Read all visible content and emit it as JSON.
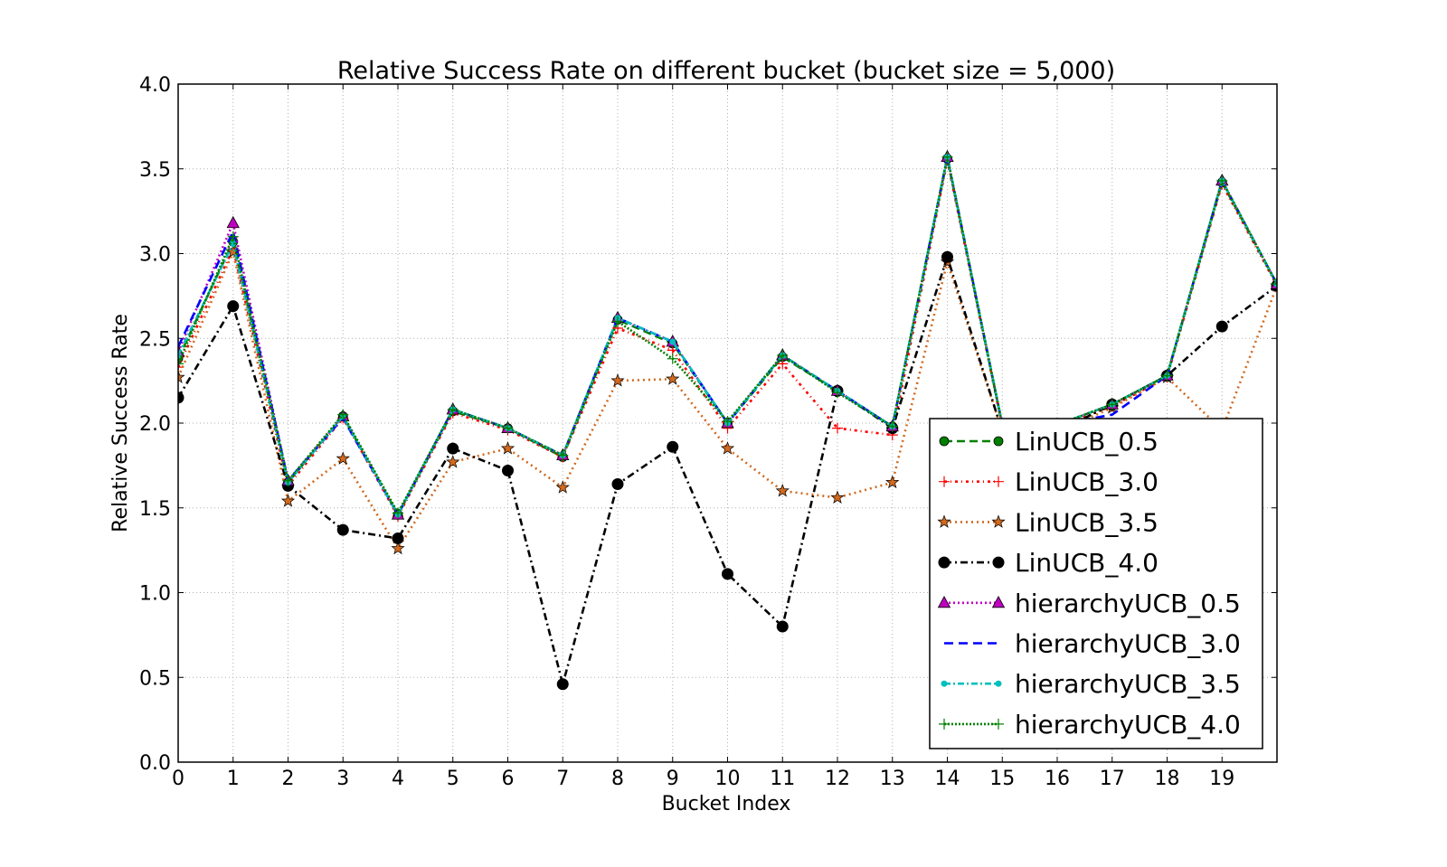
{
  "chart_data": {
    "type": "line",
    "title": "Relative Success Rate on different bucket (bucket size = 5,000)",
    "xlabel": "Bucket Index",
    "ylabel": "Relative Success Rate",
    "xlim": [
      0,
      20
    ],
    "ylim": [
      0.0,
      4.0
    ],
    "x_ticks": [
      "0",
      "1",
      "2",
      "3",
      "4",
      "5",
      "6",
      "7",
      "8",
      "9",
      "10",
      "11",
      "12",
      "13",
      "14",
      "15",
      "16",
      "17",
      "18",
      "19"
    ],
    "y_ticks": [
      "0.0",
      "0.5",
      "1.0",
      "1.5",
      "2.0",
      "2.5",
      "3.0",
      "3.5",
      "4.0"
    ],
    "grid": true,
    "legend_position": "lower-right",
    "x": [
      0,
      1,
      2,
      3,
      4,
      5,
      6,
      7,
      8,
      9,
      10,
      11,
      12,
      13,
      14,
      15,
      16,
      17,
      18,
      19,
      20
    ],
    "series": [
      {
        "name": "LinUCB_0.5",
        "color": "#008000",
        "dash": "9,5",
        "marker": "circle",
        "values": [
          2.38,
          3.07,
          1.65,
          2.04,
          1.46,
          2.07,
          1.97,
          1.8,
          2.61,
          2.47,
          2.0,
          2.39,
          2.19,
          1.98,
          3.56,
          1.99,
          1.99,
          2.11,
          2.28,
          3.42,
          2.82
        ]
      },
      {
        "name": "LinUCB_3.0",
        "color": "#ff0000",
        "dash": "3,4,1,4",
        "marker": "plus",
        "values": [
          2.33,
          3.03,
          1.63,
          2.03,
          1.45,
          2.06,
          1.96,
          1.8,
          2.56,
          2.43,
          1.97,
          2.35,
          1.97,
          1.93,
          3.55,
          1.98,
          1.98,
          2.1,
          2.27,
          3.41,
          2.81
        ]
      },
      {
        "name": "LinUCB_3.5",
        "color": "#d2691e",
        "dash": "2,4",
        "marker": "star",
        "values": [
          2.27,
          3.01,
          1.54,
          1.79,
          1.26,
          1.77,
          1.85,
          1.62,
          2.25,
          2.26,
          1.85,
          1.6,
          1.56,
          1.65,
          2.95,
          1.95,
          1.95,
          2.09,
          2.27,
          1.96,
          2.81
        ]
      },
      {
        "name": "LinUCB_4.0",
        "color": "#000000",
        "dash": "8,4,2,4",
        "marker": "dot",
        "values": [
          2.15,
          2.69,
          1.63,
          1.37,
          1.32,
          1.85,
          1.72,
          0.46,
          1.64,
          1.86,
          1.11,
          0.8,
          2.19,
          1.97,
          2.98,
          1.95,
          1.95,
          2.11,
          2.28,
          2.57,
          2.81
        ]
      },
      {
        "name": "hierarchyUCB_0.5",
        "color": "#bf00bf",
        "dash": "2,3",
        "marker": "triangle",
        "values": [
          2.42,
          3.18,
          1.66,
          2.04,
          1.46,
          2.08,
          1.97,
          1.81,
          2.62,
          2.48,
          2.0,
          2.4,
          2.19,
          1.98,
          3.57,
          1.99,
          1.99,
          2.11,
          2.28,
          3.43,
          2.82
        ]
      },
      {
        "name": "hierarchyUCB_3.0",
        "color": "#0000ff",
        "dash": "10,6",
        "marker": "none",
        "values": [
          2.45,
          3.13,
          1.66,
          2.03,
          1.46,
          2.08,
          1.97,
          1.81,
          2.62,
          2.48,
          2.0,
          2.4,
          2.19,
          1.98,
          3.57,
          1.99,
          1.99,
          2.05,
          2.28,
          3.43,
          2.82
        ]
      },
      {
        "name": "hierarchyUCB_3.5",
        "color": "#00bfbf",
        "dash": "7,3,2,3",
        "marker": "small-dot",
        "values": [
          2.4,
          3.06,
          1.65,
          2.04,
          1.46,
          2.08,
          1.97,
          1.81,
          2.62,
          2.48,
          2.0,
          2.4,
          2.19,
          1.98,
          3.57,
          1.99,
          1.99,
          2.11,
          2.28,
          3.43,
          2.82
        ]
      },
      {
        "name": "hierarchyUCB_4.0",
        "color": "#008000",
        "dash": "2,2",
        "marker": "plus",
        "values": [
          2.35,
          3.1,
          1.66,
          2.05,
          1.47,
          2.08,
          1.97,
          1.81,
          2.6,
          2.38,
          2.01,
          2.4,
          2.18,
          1.98,
          3.57,
          1.99,
          1.99,
          2.11,
          2.28,
          3.43,
          2.82
        ]
      }
    ]
  }
}
